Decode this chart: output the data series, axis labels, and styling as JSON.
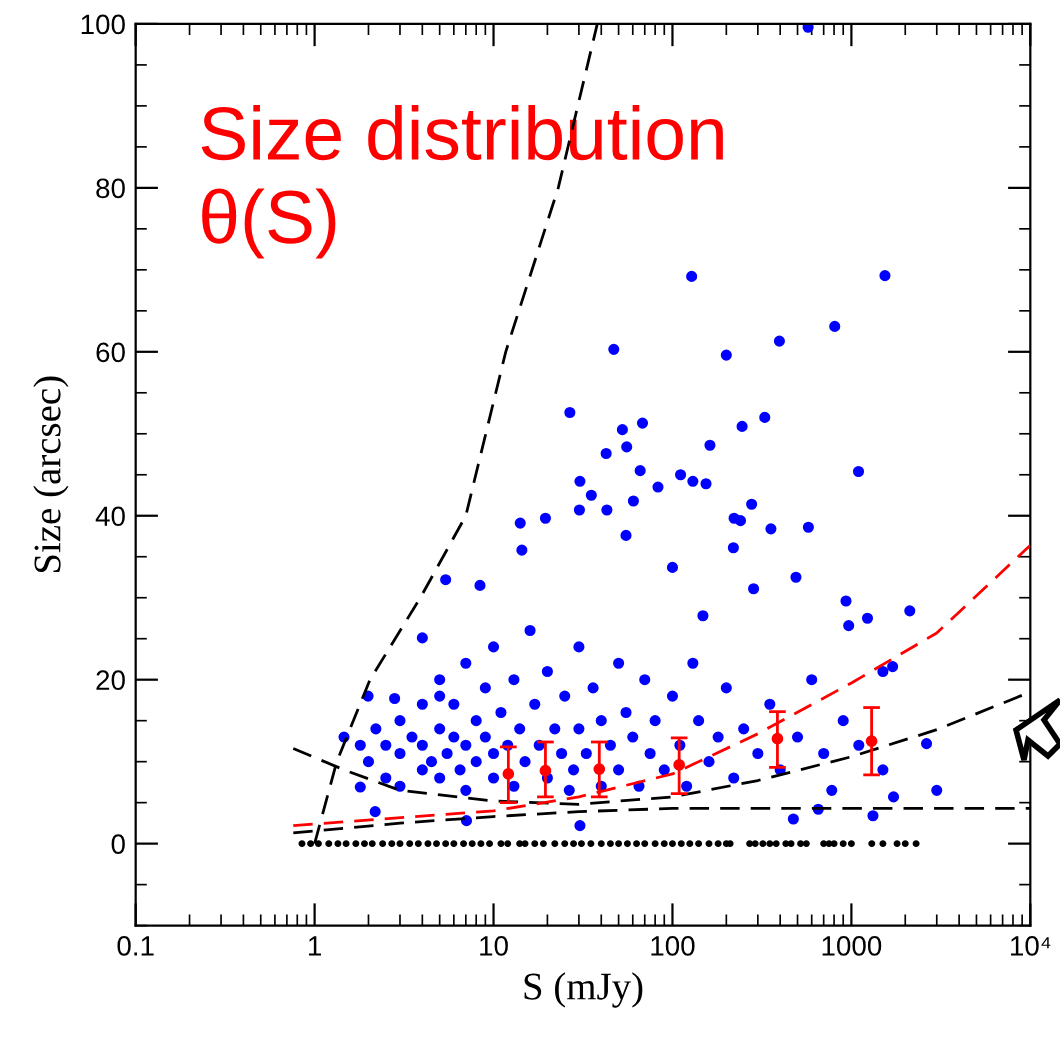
{
  "chart_data": {
    "type": "scatter",
    "title": "Size distribution\nθ(S)",
    "xlabel": "S (mJy)",
    "ylabel": "Size (arcsec)",
    "log": "x",
    "grid": false,
    "legend": false,
    "marker": "circle",
    "xlim": [
      0.1,
      10000
    ],
    "ylim": [
      -10,
      100
    ],
    "xticks": [
      0.1,
      1,
      10,
      100,
      1000,
      {
        "value": 10000,
        "label": "10⁴"
      }
    ],
    "yticks": [
      0,
      20,
      40,
      60,
      80,
      100
    ],
    "series": [
      {
        "color": "#0000ff",
        "x": [
          573,
          128,
          1540,
          807,
          396,
          200,
          47,
          26.7,
          52.5,
          68,
          328,
          245,
          42.6,
          55.5,
          162,
          1096,
          66,
          111,
          130,
          154,
          30.4,
          83,
          35.2,
          60.5,
          277,
          30.2,
          43,
          14.1,
          19.5,
          221,
          240,
          355,
          575,
          219,
          14.4,
          8.4,
          284,
          490,
          933,
          100,
          55,
          148,
          2120,
          1230,
          1700,
          2630,
          3000,
          1720,
          1320,
          474,
          653,
          777,
          966,
          5.4,
          4.0,
          2.8,
          1.99,
          1.46,
          1.8,
          2.18,
          5.0,
          7.06,
          30.4,
          26.5,
          1.8,
          2,
          2.2,
          2.5,
          2.5,
          3,
          3,
          3,
          3.5,
          4,
          4,
          4,
          4.5,
          5,
          5,
          5,
          5.5,
          6,
          6,
          6.5,
          7,
          7,
          7,
          8,
          8,
          9,
          9,
          10,
          10,
          10,
          11,
          12,
          13,
          13,
          14,
          15,
          16,
          17,
          18,
          20,
          20,
          22,
          24,
          25,
          28,
          30,
          30,
          33,
          36,
          40,
          40,
          45,
          50,
          50,
          55,
          60,
          65,
          70,
          75,
          80,
          90,
          100,
          110,
          120,
          130,
          140,
          160,
          180,
          200,
          220,
          250,
          300,
          350,
          400,
          500,
          600,
          700,
          900,
          1100,
          1500,
          1500
        ],
        "values": [
          99.6,
          69.2,
          69.3,
          63.1,
          61.3,
          59.6,
          60.3,
          52.6,
          50.5,
          51.3,
          52.0,
          50.9,
          47.6,
          48.4,
          48.6,
          45.4,
          45.5,
          45,
          44.2,
          43.9,
          44.2,
          43.5,
          42.5,
          41.8,
          41.4,
          40.7,
          40.7,
          39.1,
          39.7,
          39.7,
          39.4,
          38.4,
          38.6,
          36.1,
          35.8,
          31.5,
          31.1,
          32.5,
          29.6,
          33.7,
          37.6,
          27.8,
          28.4,
          27.5,
          21.6,
          12.2,
          6.5,
          5.7,
          3.4,
          3.0,
          4.2,
          6.5,
          26.6,
          32.2,
          25.1,
          17.7,
          18.0,
          13.0,
          6.9,
          3.9,
          18,
          2.8,
          2.2,
          6.5,
          12,
          10,
          14,
          8,
          12,
          11,
          15,
          7,
          13,
          9,
          12,
          17,
          10,
          14,
          8,
          20,
          11,
          13,
          17,
          9,
          12,
          22,
          6.5,
          15,
          10,
          13,
          19,
          11,
          24,
          8,
          16,
          12,
          20,
          7,
          14,
          10,
          26,
          17,
          12,
          8,
          21,
          14,
          11,
          18,
          9,
          24,
          14,
          11,
          19,
          7,
          15,
          12,
          22,
          9,
          16,
          13,
          7,
          20,
          11,
          15,
          9,
          18,
          12,
          7,
          22,
          15,
          10,
          13,
          19,
          8,
          14,
          11,
          17,
          9,
          13,
          20,
          11,
          15,
          12,
          21,
          9
        ]
      },
      {
        "type": "scatter",
        "color": "#000000",
        "x": [
          0.85,
          0.95,
          1.05,
          1.2,
          1.35,
          1.5,
          1.7,
          1.9,
          2.1,
          2.4,
          2.7,
          3,
          3.4,
          3.8,
          4.3,
          4.8,
          5.4,
          6,
          6.8,
          7.6,
          8.5,
          9.5,
          11,
          12,
          14,
          15,
          17,
          19,
          22,
          25,
          28,
          31,
          35,
          40,
          45,
          50,
          56,
          63,
          70,
          80,
          90,
          100,
          112,
          125,
          140,
          160,
          180,
          200,
          210,
          270,
          290,
          320,
          350,
          380,
          430,
          460,
          520,
          560,
          700,
          750,
          800,
          900,
          1000,
          1300,
          1500,
          1800,
          2000,
          2300
        ],
        "values": [
          0,
          0,
          0,
          0,
          0,
          0,
          0,
          0,
          0,
          0,
          0,
          0,
          0,
          0,
          0,
          0,
          0,
          0,
          0,
          0,
          0,
          0,
          0,
          0,
          0,
          0,
          0,
          0,
          0,
          0,
          0,
          0,
          0,
          0,
          0,
          0,
          0,
          0,
          0,
          0,
          0,
          0,
          0,
          0,
          0,
          0,
          0,
          0,
          0,
          0,
          0,
          0,
          0,
          0,
          0,
          0,
          0,
          0,
          0,
          0,
          0,
          0,
          0,
          0,
          0,
          0,
          0,
          0
        ]
      },
      {
        "type": "scatter",
        "color": "#ff0000",
        "x": [
          12.1,
          19.5,
          39,
          109,
          386,
          1297
        ],
        "values": [
          8.5,
          8.9,
          9.1,
          9.6,
          12.8,
          12.5
        ],
        "errors": [
          [
            5.0,
            11.8
          ],
          [
            5.7,
            12.4
          ],
          [
            5.7,
            12.4
          ],
          [
            6.1,
            12.9
          ],
          [
            9.3,
            16.1
          ],
          [
            8.4,
            16.6
          ]
        ]
      },
      {
        "type": "line",
        "marker": "none",
        "color": "#000000",
        "line_style": "dashed",
        "x": [
          1,
          1.33,
          2.04,
          3.9,
          7.0,
          11.7,
          23,
          38
        ],
        "values": [
          0,
          10,
          20,
          30,
          40,
          60,
          80,
          100
        ]
      },
      {
        "type": "line",
        "marker": "none",
        "color": "#000000",
        "line_style": "dashed",
        "x": [
          0.76,
          1.5,
          3,
          10,
          30,
          100,
          300,
          1000,
          3000,
          10000
        ],
        "values": [
          11.6,
          8.9,
          6.5,
          5.2,
          4.8,
          5.7,
          7.7,
          10.6,
          13.9,
          18.5
        ]
      },
      {
        "type": "line",
        "marker": "none",
        "color": "#000000",
        "line_style": "dashed",
        "x": [
          0.76,
          3,
          10,
          30,
          100,
          1000,
          10000
        ],
        "values": [
          1.3,
          2.5,
          3.3,
          3.9,
          4.3,
          4.3,
          4.3
        ]
      },
      {
        "type": "line",
        "marker": "none",
        "color": "#ff0000",
        "line_style": "dashed",
        "x": [
          0.76,
          10,
          30,
          100,
          300,
          1000,
          3000,
          10000
        ],
        "values": [
          2.2,
          4.0,
          5.7,
          8.5,
          13.4,
          19.6,
          25.7,
          36.4
        ]
      }
    ]
  }
}
